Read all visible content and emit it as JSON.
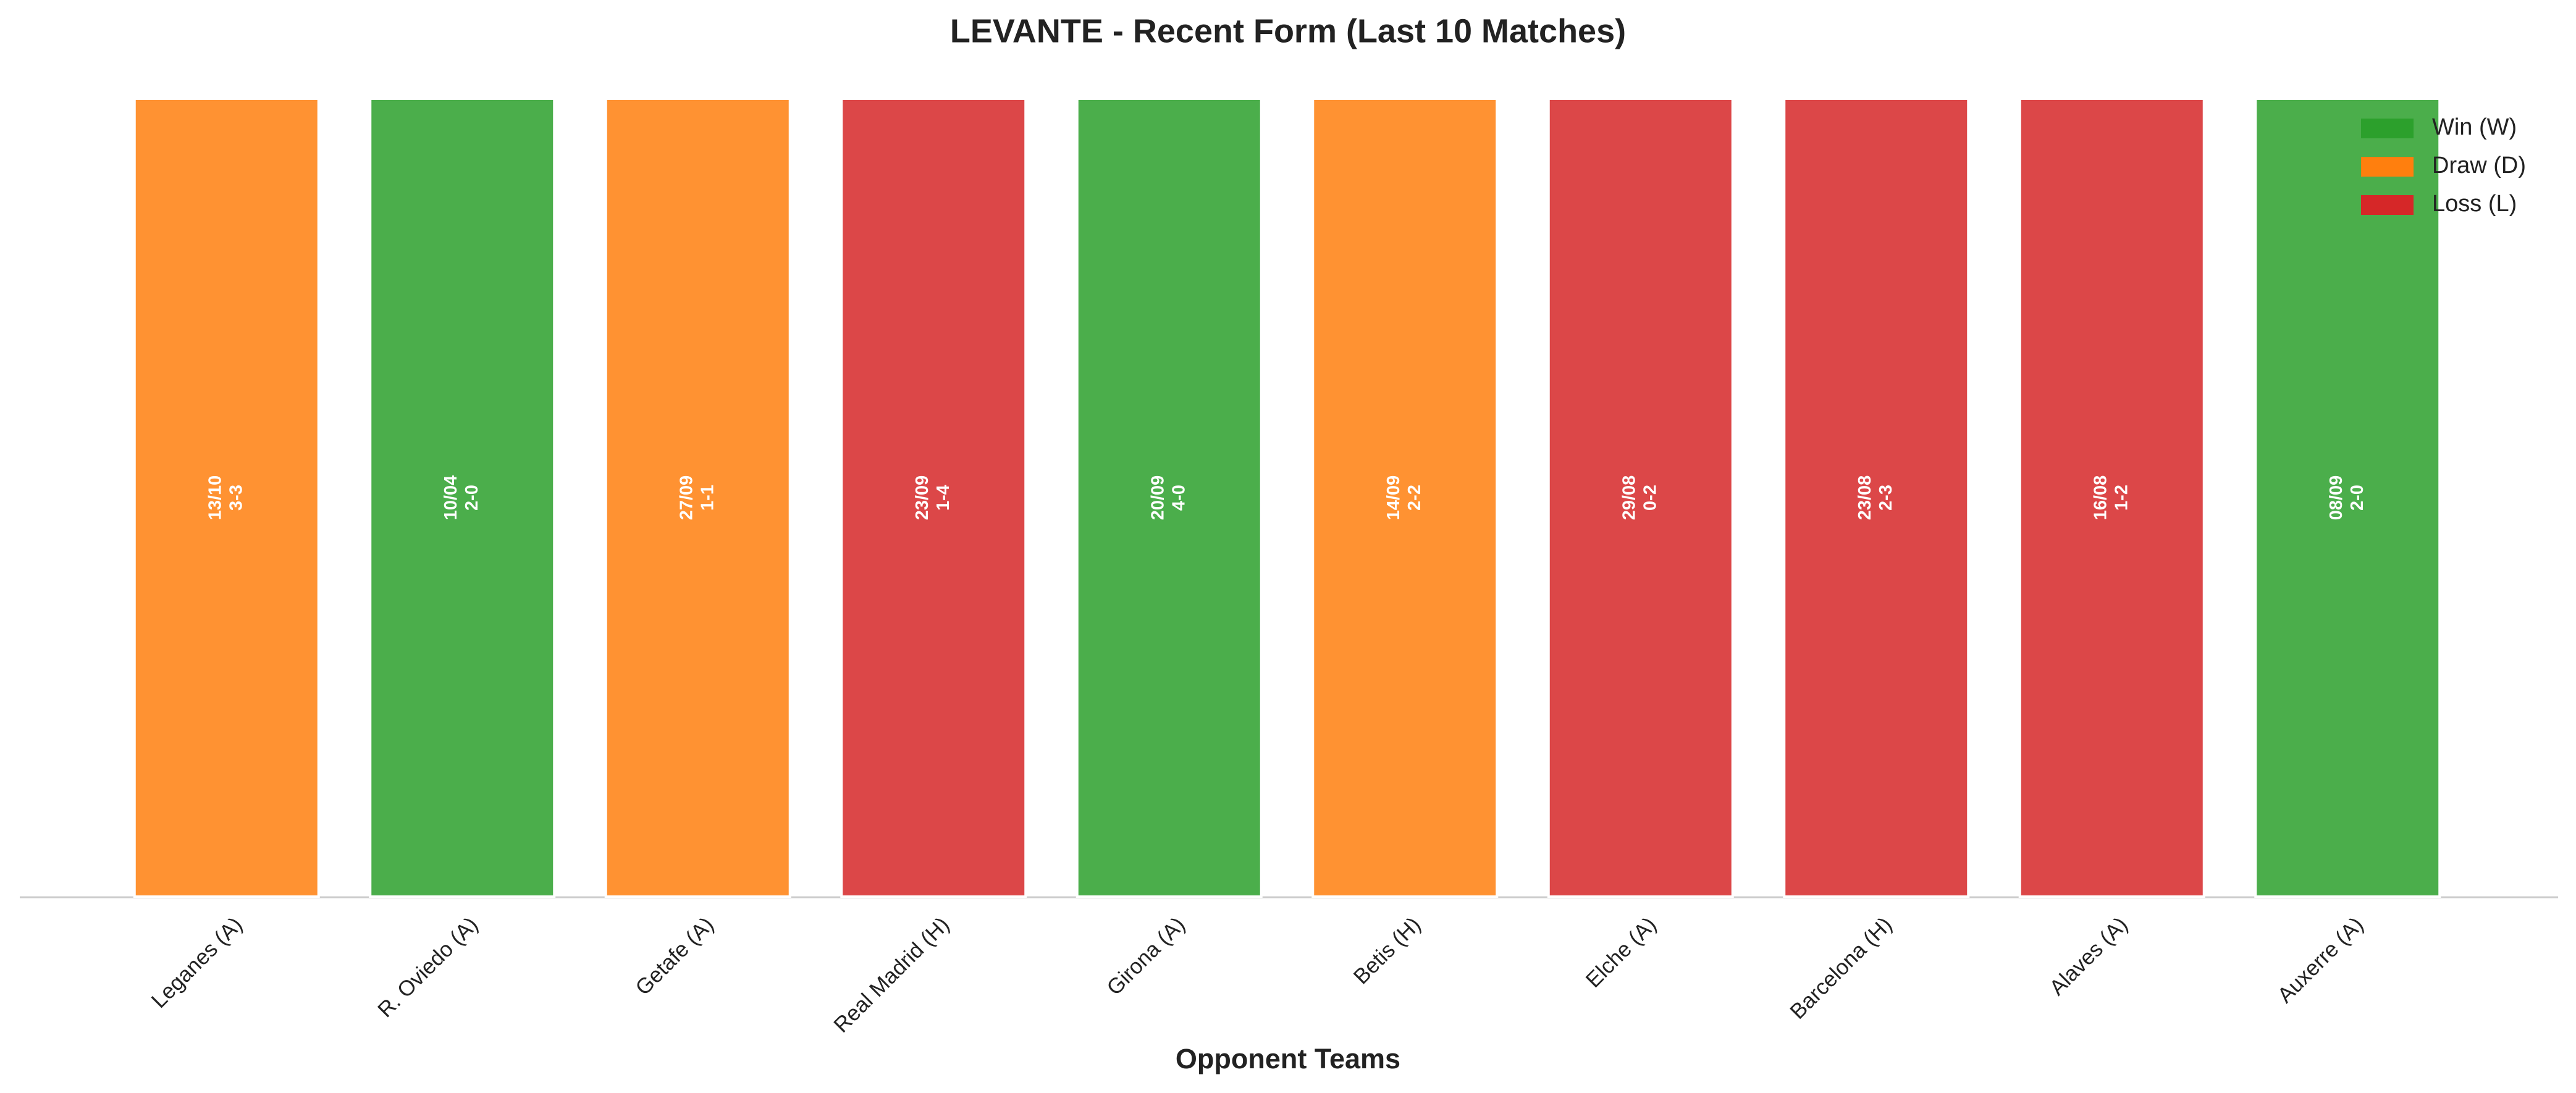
{
  "chart_data": {
    "type": "bar",
    "title": "LEVANTE - Recent Form (Last 10 Matches)",
    "x_label": "Opponent Teams",
    "categories": [
      "Leganes (A)",
      "R. Oviedo (A)",
      "Getafe (A)",
      "Real Madrid (H)",
      "Girona (A)",
      "Betis (H)",
      "Elche (A)",
      "Barcelona (H)",
      "Alaves (A)",
      "Auxerre (A)"
    ],
    "dates": [
      "13/10",
      "10/04",
      "27/09",
      "23/09",
      "20/09",
      "14/09",
      "29/08",
      "23/08",
      "16/08",
      "08/09"
    ],
    "scores": [
      "3-3",
      "2-0",
      "1-1",
      "1-4",
      "4-0",
      "2-2",
      "0-2",
      "2-3",
      "1-2",
      "2-0"
    ],
    "series": [
      {
        "name": "Win (W)",
        "color": "#2ca02c",
        "values": [
          null,
          1,
          null,
          null,
          1,
          null,
          null,
          null,
          null,
          1
        ]
      },
      {
        "name": "Draw (D)",
        "color": "#ff7f0e",
        "values": [
          1,
          null,
          1,
          null,
          null,
          1,
          null,
          null,
          null,
          null
        ]
      },
      {
        "name": "Loss (L)",
        "color": "#d62728",
        "values": [
          null,
          null,
          null,
          1,
          null,
          null,
          1,
          1,
          1,
          null
        ]
      }
    ],
    "ylim": [
      0,
      1
    ],
    "legend": "upper right"
  }
}
